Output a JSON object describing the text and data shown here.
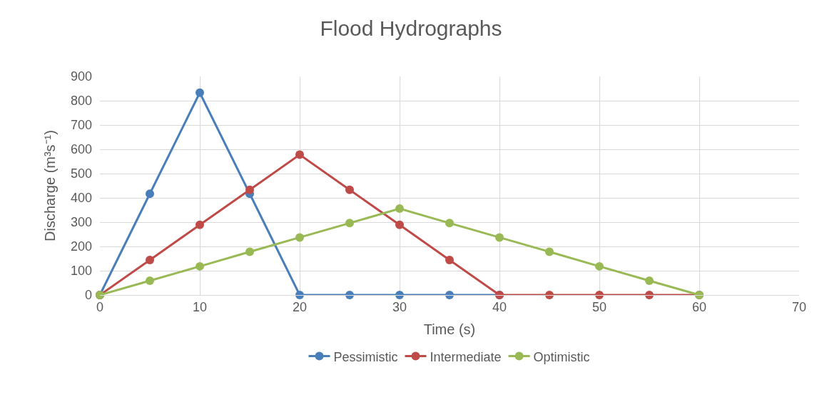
{
  "chart_data": {
    "type": "line",
    "title": "Flood Hydrographs",
    "xlabel": "Time (s)",
    "ylabel": "Discharge (m³s⁻¹)",
    "series": [
      {
        "name": "Pessimistic",
        "color": "#4a7ebb",
        "x": [
          0,
          5,
          10,
          15,
          20,
          25,
          30,
          35,
          40
        ],
        "values": [
          0,
          417,
          833,
          417,
          0,
          0,
          0,
          0,
          0
        ]
      },
      {
        "name": "Intermediate",
        "color": "#be4b48",
        "x": [
          0,
          5,
          10,
          15,
          20,
          25,
          30,
          35,
          40,
          45,
          50,
          55,
          60
        ],
        "values": [
          0,
          144,
          289,
          433,
          578,
          433,
          289,
          144,
          0,
          0,
          0,
          0,
          0
        ]
      },
      {
        "name": "Optimistic",
        "color": "#98b954",
        "x": [
          0,
          5,
          10,
          15,
          20,
          25,
          30,
          35,
          40,
          45,
          50,
          55,
          60
        ],
        "values": [
          0,
          59,
          118,
          178,
          237,
          296,
          356,
          296,
          237,
          178,
          118,
          59,
          0
        ]
      }
    ],
    "xlim": [
      0,
      70
    ],
    "xticks": [
      0,
      10,
      20,
      30,
      40,
      50,
      60,
      70
    ],
    "ylim": [
      0,
      900
    ],
    "yticks": [
      0,
      100,
      200,
      300,
      400,
      500,
      600,
      700,
      800,
      900
    ],
    "grid": true,
    "legend": "bottom",
    "marker": "circle",
    "line_style": "solid"
  }
}
